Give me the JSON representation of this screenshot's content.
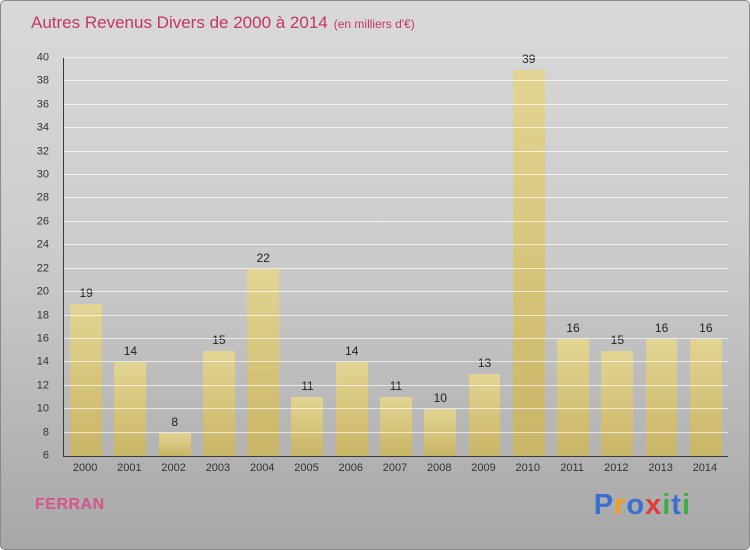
{
  "title": {
    "text": "Autres Revenus Divers de 2000 à 2014",
    "subtitle": "(en milliers d'€)"
  },
  "footer": {
    "company": "FERRAN",
    "logo_letters": [
      {
        "ch": "P",
        "color": "#3a6fd0"
      },
      {
        "ch": "r",
        "color": "#f59b20"
      },
      {
        "ch": "o",
        "color": "#3a6fd0"
      },
      {
        "ch": "x",
        "color": "#e23b3b"
      },
      {
        "ch": "i",
        "color": "#3fae49"
      },
      {
        "ch": "t",
        "color": "#3a6fd0"
      },
      {
        "ch": "i",
        "color": "#3fae49"
      }
    ]
  },
  "chart_data": {
    "type": "bar",
    "title": "Autres Revenus Divers de 2000 à 2014",
    "subtitle": "(en milliers d'€)",
    "categories": [
      "2000",
      "2001",
      "2002",
      "2003",
      "2004",
      "2005",
      "2006",
      "2007",
      "2008",
      "2009",
      "2010",
      "2011",
      "2012",
      "2013",
      "2014"
    ],
    "values": [
      19,
      14,
      8,
      15,
      22,
      11,
      14,
      11,
      10,
      13,
      39,
      16,
      15,
      16,
      16
    ],
    "xlabel": "",
    "ylabel": "",
    "ylim": [
      6,
      40
    ],
    "ytick_step": 2,
    "grid": true,
    "legend": false,
    "bar_color": "#d5c379"
  }
}
